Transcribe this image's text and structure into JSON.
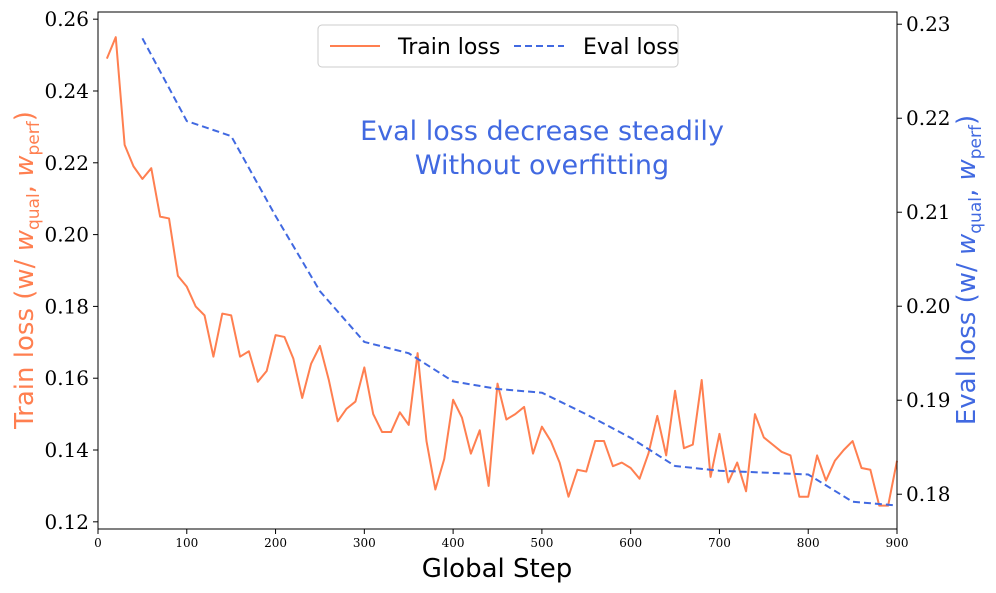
{
  "chart_data": {
    "type": "line",
    "xlabel": "Global Step",
    "ylabel_left": {
      "prefix": "Train loss (w/ ",
      "w1": "w",
      "sub1": "qual",
      "sep": ", ",
      "w2": "w",
      "sub2": "perf",
      "suffix": ")"
    },
    "ylabel_right": {
      "prefix": "Eval loss (w/ ",
      "w1": "w",
      "sub1": "qual",
      "sep": ", ",
      "w2": "w",
      "sub2": "perf",
      "suffix": ")"
    },
    "annotation": [
      "Eval loss decrease steadily",
      "Without overfitting"
    ],
    "annotation_color": "#4169e1",
    "legend_position": "top-center",
    "xlim": [
      0,
      900
    ],
    "x_ticks": [
      0,
      100,
      200,
      300,
      400,
      500,
      600,
      700,
      800,
      900
    ],
    "x_tick_labels": [
      "0",
      "100",
      "200",
      "300",
      "400",
      "500",
      "600",
      "700",
      "800",
      "900"
    ],
    "ylim_left": [
      0.118,
      0.262
    ],
    "y_ticks_left": [
      0.12,
      0.14,
      0.16,
      0.18,
      0.2,
      0.22,
      0.24,
      0.26
    ],
    "y_tick_labels_left": [
      "0.12",
      "0.14",
      "0.16",
      "0.18",
      "0.20",
      "0.22",
      "0.24",
      "0.26"
    ],
    "ylim_right": [
      0.1763,
      0.2313
    ],
    "y_ticks_right": [
      0.18,
      0.19,
      0.2,
      0.21,
      0.22,
      0.23
    ],
    "y_tick_labels_right": [
      "0.18",
      "0.19",
      "0.20",
      "0.21",
      "0.22",
      "0.23"
    ],
    "series": [
      {
        "name": "Train loss",
        "axis": "left",
        "color": "#ff7f50",
        "style": "solid",
        "x": [
          10,
          20,
          30,
          40,
          50,
          60,
          70,
          80,
          90,
          100,
          110,
          120,
          130,
          140,
          150,
          160,
          170,
          180,
          190,
          200,
          210,
          220,
          230,
          240,
          250,
          260,
          270,
          280,
          290,
          300,
          310,
          320,
          330,
          340,
          350,
          360,
          370,
          380,
          390,
          400,
          410,
          420,
          430,
          440,
          450,
          460,
          470,
          480,
          490,
          500,
          510,
          520,
          530,
          540,
          550,
          560,
          570,
          580,
          590,
          600,
          610,
          620,
          630,
          640,
          650,
          660,
          670,
          680,
          690,
          700,
          710,
          720,
          730,
          740,
          750,
          760,
          770,
          780,
          790,
          800,
          810,
          820,
          830,
          840,
          850,
          860,
          870,
          880,
          890,
          900
        ],
        "values": [
          0.249,
          0.255,
          0.225,
          0.219,
          0.2155,
          0.2185,
          0.205,
          0.2045,
          0.1885,
          0.1855,
          0.18,
          0.1775,
          0.166,
          0.178,
          0.1775,
          0.166,
          0.1675,
          0.159,
          0.162,
          0.172,
          0.1715,
          0.1655,
          0.1545,
          0.164,
          0.169,
          0.1595,
          0.148,
          0.1515,
          0.1535,
          0.163,
          0.15,
          0.145,
          0.145,
          0.1505,
          0.147,
          0.167,
          0.1425,
          0.129,
          0.1375,
          0.154,
          0.149,
          0.139,
          0.1455,
          0.13,
          0.1585,
          0.1485,
          0.15,
          0.152,
          0.139,
          0.1465,
          0.1425,
          0.1365,
          0.127,
          0.1345,
          0.134,
          0.1425,
          0.1425,
          0.1355,
          0.1365,
          0.135,
          0.132,
          0.139,
          0.1495,
          0.1385,
          0.1565,
          0.1405,
          0.1415,
          0.1595,
          0.1325,
          0.1445,
          0.131,
          0.1365,
          0.1285,
          0.15,
          0.1435,
          0.1415,
          0.1395,
          0.1385,
          0.127,
          0.127,
          0.1385,
          0.1315,
          0.137,
          0.14,
          0.1425,
          0.135,
          0.1345,
          0.1245,
          0.1245,
          0.137
        ]
      },
      {
        "name": "Eval loss",
        "axis": "right",
        "color": "#4169e1",
        "style": "dashed",
        "x": [
          50,
          100,
          150,
          200,
          250,
          300,
          350,
          400,
          450,
          500,
          550,
          600,
          650,
          700,
          750,
          800,
          850,
          900
        ],
        "values": [
          0.2285,
          0.2197,
          0.2181,
          0.2096,
          0.2016,
          0.1962,
          0.195,
          0.192,
          0.1912,
          0.1908,
          0.1885,
          0.186,
          0.183,
          0.1825,
          0.1823,
          0.1821,
          0.1792,
          0.1788
        ]
      }
    ]
  }
}
